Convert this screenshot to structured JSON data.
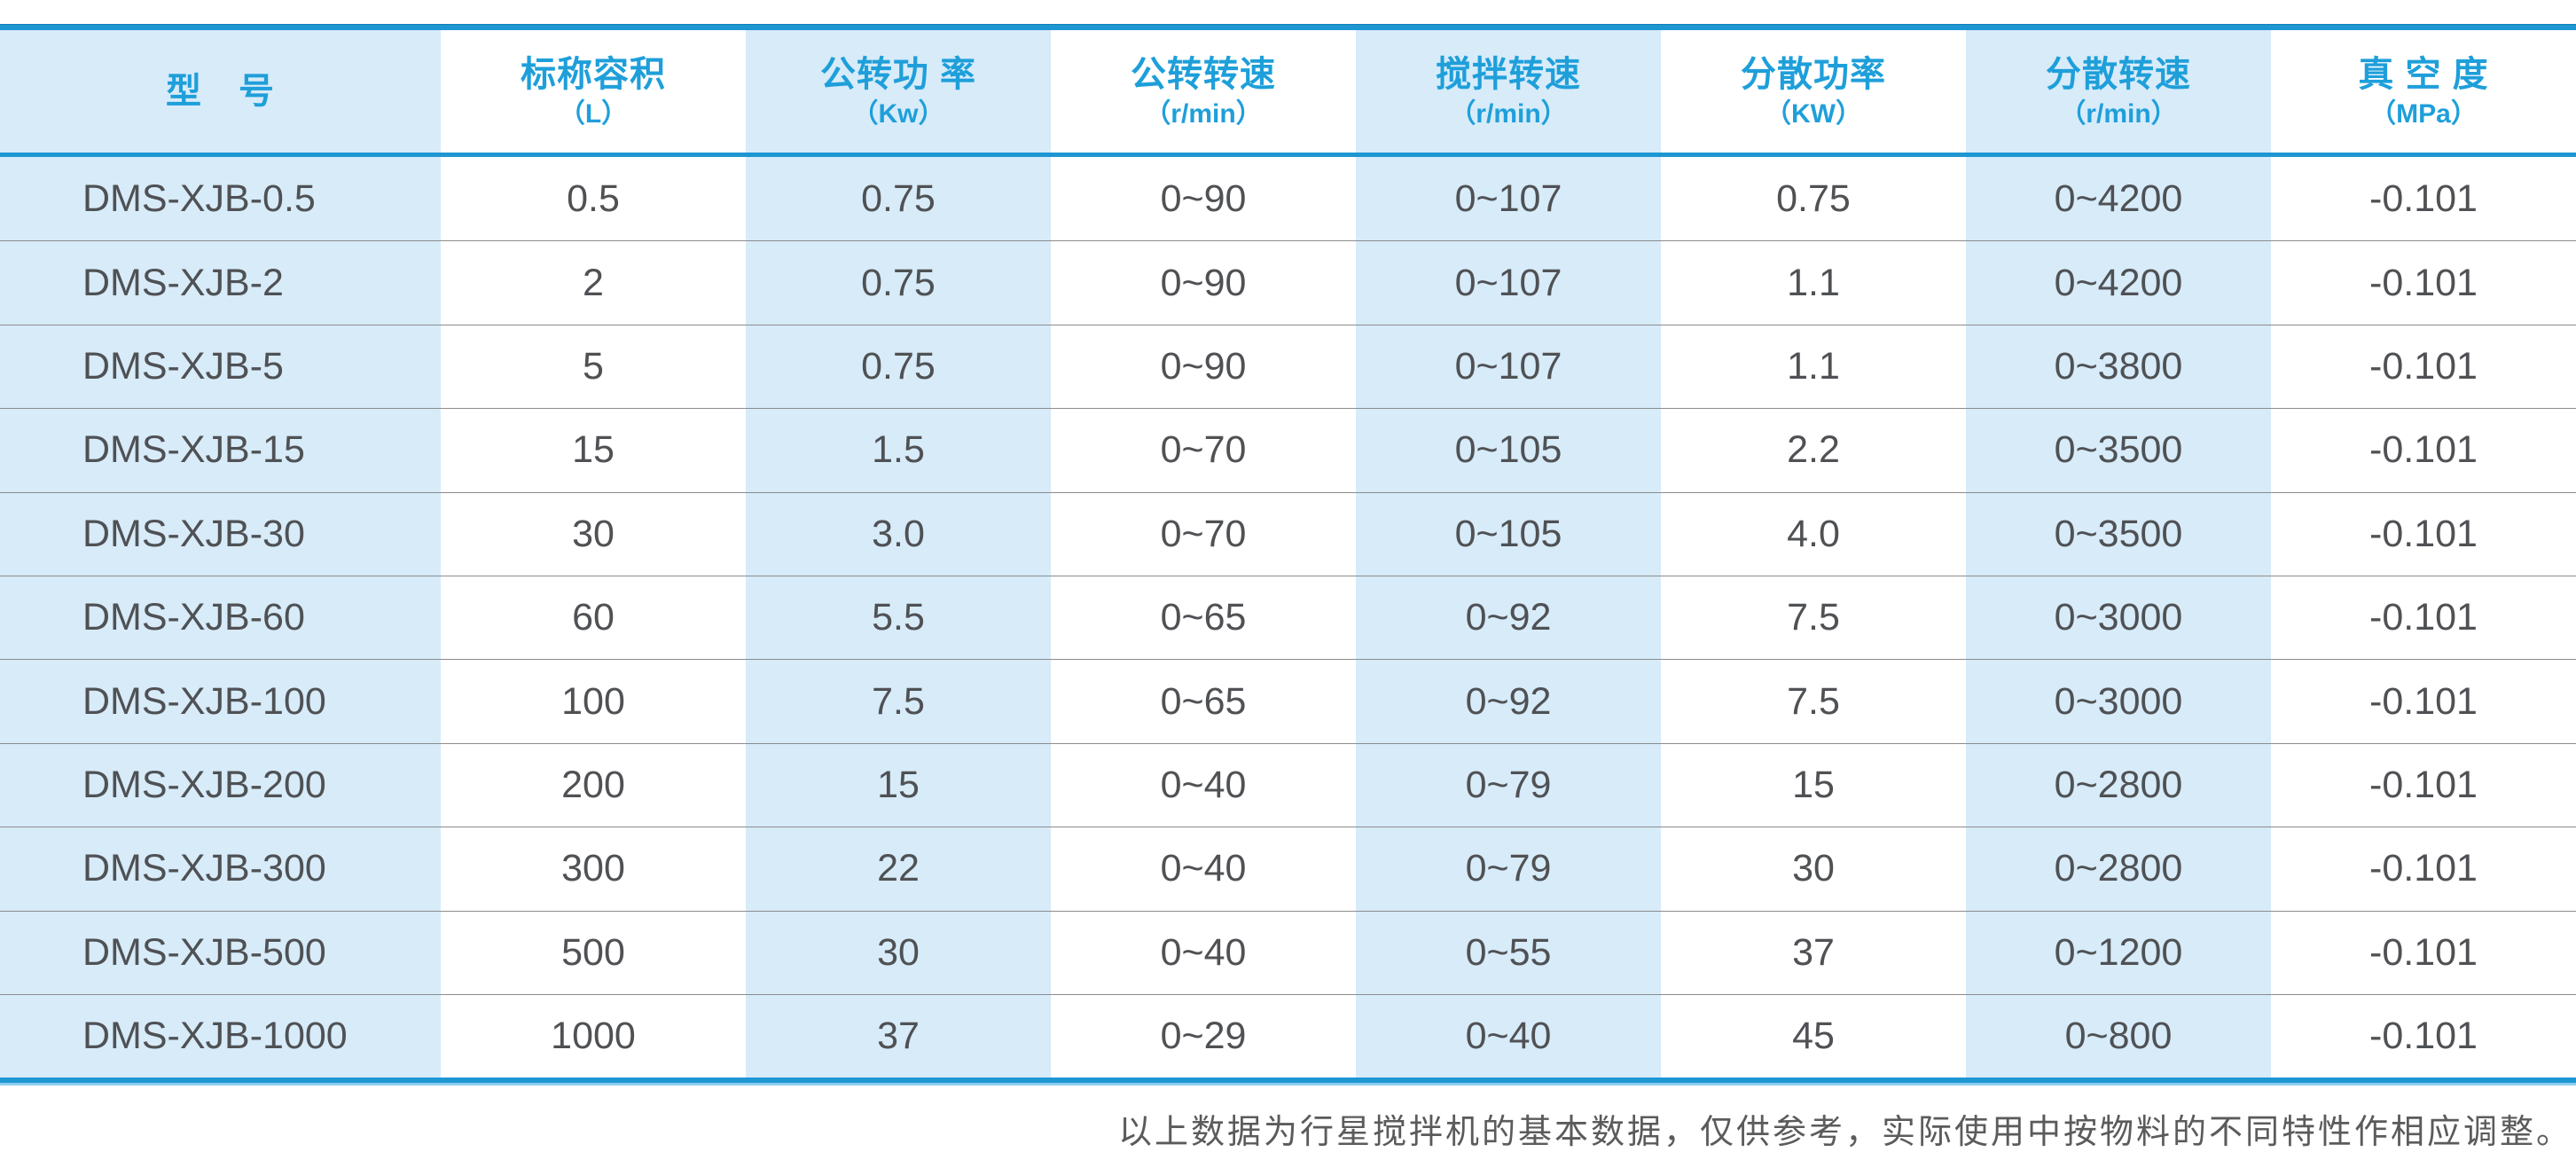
{
  "table": {
    "columns": [
      {
        "title": "型　号",
        "unit": ""
      },
      {
        "title": "标称容积",
        "unit": "（L）"
      },
      {
        "title": "公转功 率",
        "unit": "（Kw）"
      },
      {
        "title": "公转转速",
        "unit": "（r/min）"
      },
      {
        "title": "搅拌转速",
        "unit": "（r/min）"
      },
      {
        "title": "分散功率",
        "unit": "（KW）"
      },
      {
        "title": "分散转速",
        "unit": "（r/min）"
      },
      {
        "title": "真 空 度",
        "unit": "（MPa）"
      }
    ],
    "rows": [
      [
        "DMS-XJB-0.5",
        "0.5",
        "0.75",
        "0~90",
        "0~107",
        "0.75",
        "0~4200",
        "-0.101"
      ],
      [
        "DMS-XJB-2",
        "2",
        "0.75",
        "0~90",
        "0~107",
        "1.1",
        "0~4200",
        "-0.101"
      ],
      [
        "DMS-XJB-5",
        "5",
        "0.75",
        "0~90",
        "0~107",
        "1.1",
        "0~3800",
        "-0.101"
      ],
      [
        "DMS-XJB-15",
        "15",
        "1.5",
        "0~70",
        "0~105",
        "2.2",
        "0~3500",
        "-0.101"
      ],
      [
        "DMS-XJB-30",
        "30",
        "3.0",
        "0~70",
        "0~105",
        "4.0",
        "0~3500",
        "-0.101"
      ],
      [
        "DMS-XJB-60",
        "60",
        "5.5",
        "0~65",
        "0~92",
        "7.5",
        "0~3000",
        "-0.101"
      ],
      [
        "DMS-XJB-100",
        "100",
        "7.5",
        "0~65",
        "0~92",
        "7.5",
        "0~3000",
        "-0.101"
      ],
      [
        "DMS-XJB-200",
        "200",
        "15",
        "0~40",
        "0~79",
        "15",
        "0~2800",
        "-0.101"
      ],
      [
        "DMS-XJB-300",
        "300",
        "22",
        "0~40",
        "0~79",
        "30",
        "0~2800",
        "-0.101"
      ],
      [
        "DMS-XJB-500",
        "500",
        "30",
        "0~40",
        "0~55",
        "37",
        "0~1200",
        "-0.101"
      ],
      [
        "DMS-XJB-1000",
        "1000",
        "37",
        "0~29",
        "0~40",
        "45",
        "0~800",
        "-0.101"
      ]
    ]
  },
  "footer": {
    "note": "以上数据为行星搅拌机的基本数据，仅供参考，实际使用中按物料的不同特性作相应调整。"
  },
  "colors": {
    "accent_blue": "#1E96D2",
    "header_text_blue": "#1E9FDA",
    "stripe_light_blue": "#D7EBF9",
    "data_text": "#4F5154",
    "row_separator": "#8C8C8C",
    "footer_text": "#5B5B5B"
  }
}
